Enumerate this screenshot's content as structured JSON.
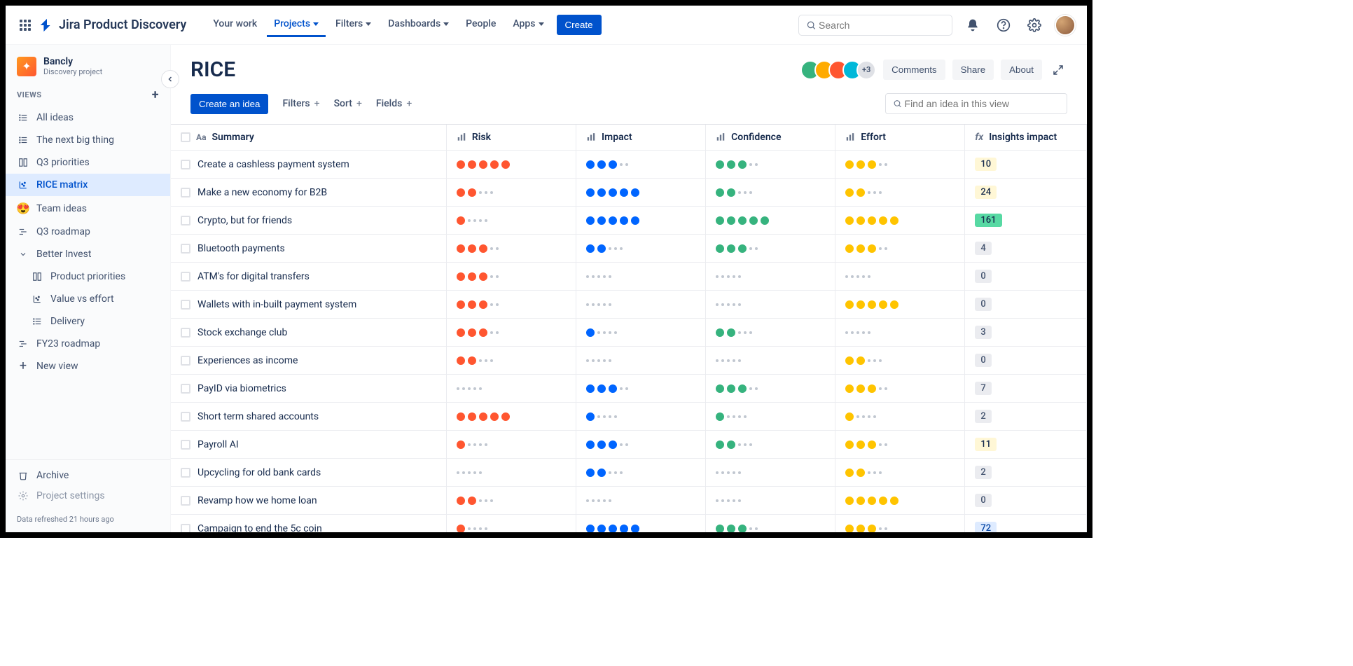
{
  "logo": {
    "text": "Jira Product Discovery"
  },
  "nav": {
    "your_work": "Your work",
    "projects": "Projects",
    "filters": "Filters",
    "dashboards": "Dashboards",
    "people": "People",
    "apps": "Apps",
    "create": "Create",
    "search_placeholder": "Search"
  },
  "sidebar": {
    "project_name": "Bancly",
    "project_type": "Discovery project",
    "views_heading": "VIEWS",
    "items": [
      {
        "label": "All ideas",
        "icon": "list"
      },
      {
        "label": "The next big thing",
        "icon": "list"
      },
      {
        "label": "Q3 priorities",
        "icon": "board"
      },
      {
        "label": "RICE matrix",
        "icon": "matrix",
        "selected": true
      },
      {
        "label": "Team ideas",
        "icon": "emoji"
      },
      {
        "label": "Q3 roadmap",
        "icon": "timeline"
      },
      {
        "label": "Better Invest",
        "icon": "chevron",
        "expandable": true
      },
      {
        "label": "Product priorities",
        "icon": "board",
        "indent": true
      },
      {
        "label": "Value vs effort",
        "icon": "matrix",
        "indent": true
      },
      {
        "label": "Delivery",
        "icon": "list",
        "indent": true
      },
      {
        "label": "FY23 roadmap",
        "icon": "timeline"
      },
      {
        "label": "New view",
        "icon": "plus"
      }
    ],
    "archive": "Archive",
    "settings": "Project settings",
    "footer": "Data refreshed 21 hours ago"
  },
  "page": {
    "title": "RICE",
    "avatar_extra": "+3",
    "comments": "Comments",
    "share": "Share",
    "about": "About",
    "create_idea": "Create an idea",
    "filters": "Filters",
    "sort": "Sort",
    "fields": "Fields",
    "find_placeholder": "Find an idea in this view",
    "avatar_colors": [
      "#36b37e",
      "#ffab00",
      "#ff5630",
      "#00b8d9"
    ]
  },
  "colors": {
    "risk": "#ff5630",
    "impact": "#0065ff",
    "confidence": "#36b37e",
    "effort": "#ffc400",
    "badge_yellow_bg": "#fff7d6",
    "badge_yellow_text": "#172b4d",
    "badge_green_bg": "#57d9a3",
    "badge_green_text": "#172b4d",
    "badge_grey_bg": "#ebecf0",
    "badge_grey_text": "#42526e",
    "badge_blue_bg": "#deebff",
    "badge_blue_text": "#0747a6"
  },
  "columns": {
    "summary": "Summary",
    "risk": "Risk",
    "impact": "Impact",
    "confidence": "Confidence",
    "effort": "Effort",
    "insights": "Insights impact"
  },
  "max_dots": 5,
  "rows": [
    {
      "summary": "Create a cashless payment system",
      "risk": 5,
      "impact": 3,
      "confidence": 3,
      "effort": 3,
      "insights": 10,
      "badge": "yellow"
    },
    {
      "summary": "Make a new economy for B2B",
      "risk": 2,
      "impact": 5,
      "confidence": 2,
      "effort": 2,
      "insights": 24,
      "badge": "yellow"
    },
    {
      "summary": "Crypto, but for friends",
      "risk": 1,
      "impact": 5,
      "confidence": 5,
      "effort": 5,
      "insights": 161,
      "badge": "green"
    },
    {
      "summary": "Bluetooth payments",
      "risk": 3,
      "impact": 2,
      "confidence": 3,
      "effort": 3,
      "insights": 4,
      "badge": "grey"
    },
    {
      "summary": "ATM's for digital transfers",
      "risk": 3,
      "impact": 0,
      "confidence": 0,
      "effort": 0,
      "insights": 0,
      "badge": "grey"
    },
    {
      "summary": "Wallets with in-built payment system",
      "risk": 3,
      "impact": 0,
      "confidence": 0,
      "effort": 5,
      "insights": 0,
      "badge": "grey"
    },
    {
      "summary": "Stock exchange club",
      "risk": 3,
      "impact": 1,
      "confidence": 2,
      "effort": 0,
      "insights": 3,
      "badge": "grey"
    },
    {
      "summary": "Experiences as income",
      "risk": 2,
      "impact": 0,
      "confidence": 0,
      "effort": 2,
      "insights": 0,
      "badge": "grey"
    },
    {
      "summary": "PayID via biometrics",
      "risk": 0,
      "impact": 3,
      "confidence": 3,
      "effort": 3,
      "insights": 7,
      "badge": "grey"
    },
    {
      "summary": "Short term shared accounts",
      "risk": 5,
      "impact": 1,
      "confidence": 1,
      "effort": 1,
      "insights": 2,
      "badge": "grey"
    },
    {
      "summary": "Payroll AI",
      "risk": 1,
      "impact": 3,
      "confidence": 2,
      "effort": 3,
      "insights": 11,
      "badge": "yellow"
    },
    {
      "summary": "Upcycling for old bank cards",
      "risk": 0,
      "impact": 2,
      "confidence": 0,
      "effort": 2,
      "insights": 2,
      "badge": "grey"
    },
    {
      "summary": "Revamp how we home loan",
      "risk": 2,
      "impact": 0,
      "confidence": 0,
      "effort": 5,
      "insights": 0,
      "badge": "grey"
    },
    {
      "summary": "Campaign to end the 5c coin",
      "risk": 1,
      "impact": 5,
      "confidence": 3,
      "effort": 3,
      "insights": 72,
      "badge": "blue"
    }
  ]
}
